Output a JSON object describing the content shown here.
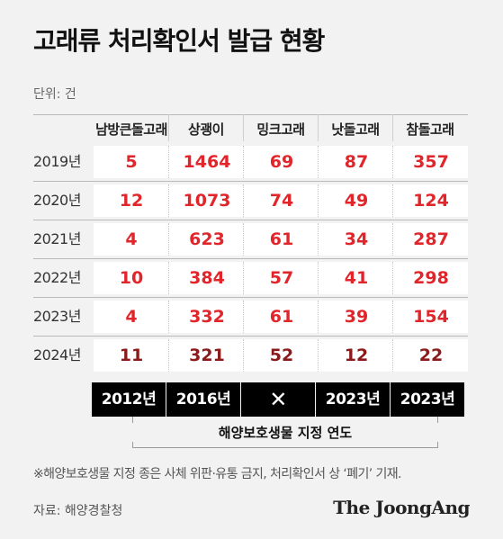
{
  "title": "고래류 처리확인서 발급 현황",
  "unit": "단위: 건",
  "chart_data": {
    "type": "table",
    "title": "고래류 처리확인서 발급 현황",
    "unit": "단위: 건",
    "columns": [
      "남방큰돌고래",
      "상괭이",
      "밍크고래",
      "낫돌고래",
      "참돌고래"
    ],
    "rows": [
      {
        "year": "2019년",
        "values": [
          5,
          1464,
          69,
          87,
          357
        ]
      },
      {
        "year": "2020년",
        "values": [
          12,
          1073,
          74,
          49,
          124
        ]
      },
      {
        "year": "2021년",
        "values": [
          4,
          623,
          61,
          34,
          287
        ]
      },
      {
        "year": "2022년",
        "values": [
          10,
          384,
          57,
          41,
          298
        ]
      },
      {
        "year": "2023년",
        "values": [
          4,
          332,
          61,
          39,
          154
        ]
      },
      {
        "year": "2024년",
        "values": [
          11,
          321,
          52,
          12,
          22
        ]
      }
    ],
    "designation_years": [
      "2012년",
      "2016년",
      "✕",
      "2023년",
      "2023년"
    ],
    "designation_label": "해양보호생물 지정 연도"
  },
  "colors": {
    "value_red": "#e0252b",
    "value_dark_red": "#8b1a1a",
    "badge_bg": "#000000",
    "badge_text": "#ffffff"
  },
  "footnote": "※해양보호생물 지정 종은 사체 위판·유통 금지, 처리확인서 상 ‘폐기’ 기재.",
  "source": "자료: 해양경찰청",
  "brand": "The JoongAng"
}
